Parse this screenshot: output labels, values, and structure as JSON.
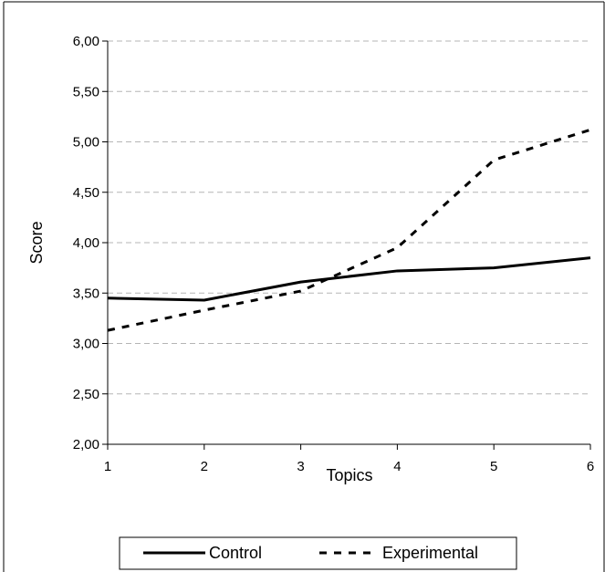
{
  "chart_data": {
    "type": "line",
    "xlabel": "Topics",
    "ylabel": "Score",
    "x": [
      1,
      2,
      3,
      4,
      5,
      6
    ],
    "xlim": [
      1,
      6
    ],
    "ylim": [
      2.0,
      6.0
    ],
    "yticks": [
      2.0,
      2.5,
      3.0,
      3.5,
      4.0,
      4.5,
      5.0,
      5.5,
      6.0
    ],
    "ytick_labels": [
      "2,00",
      "2,50",
      "3,00",
      "3,50",
      "4,00",
      "4,50",
      "5,00",
      "5,50",
      "6,00"
    ],
    "xtick_labels": [
      "1",
      "2",
      "3",
      "4",
      "5",
      "6"
    ],
    "grid": "horizontal dashed",
    "legend_position": "bottom",
    "series": [
      {
        "name": "Control",
        "style": "solid",
        "color": "#000000",
        "values": [
          3.45,
          3.43,
          3.61,
          3.72,
          3.75,
          3.85
        ]
      },
      {
        "name": "Experimental",
        "style": "dashed",
        "color": "#000000",
        "values": [
          3.13,
          3.33,
          3.52,
          3.95,
          4.82,
          5.12
        ]
      }
    ]
  }
}
